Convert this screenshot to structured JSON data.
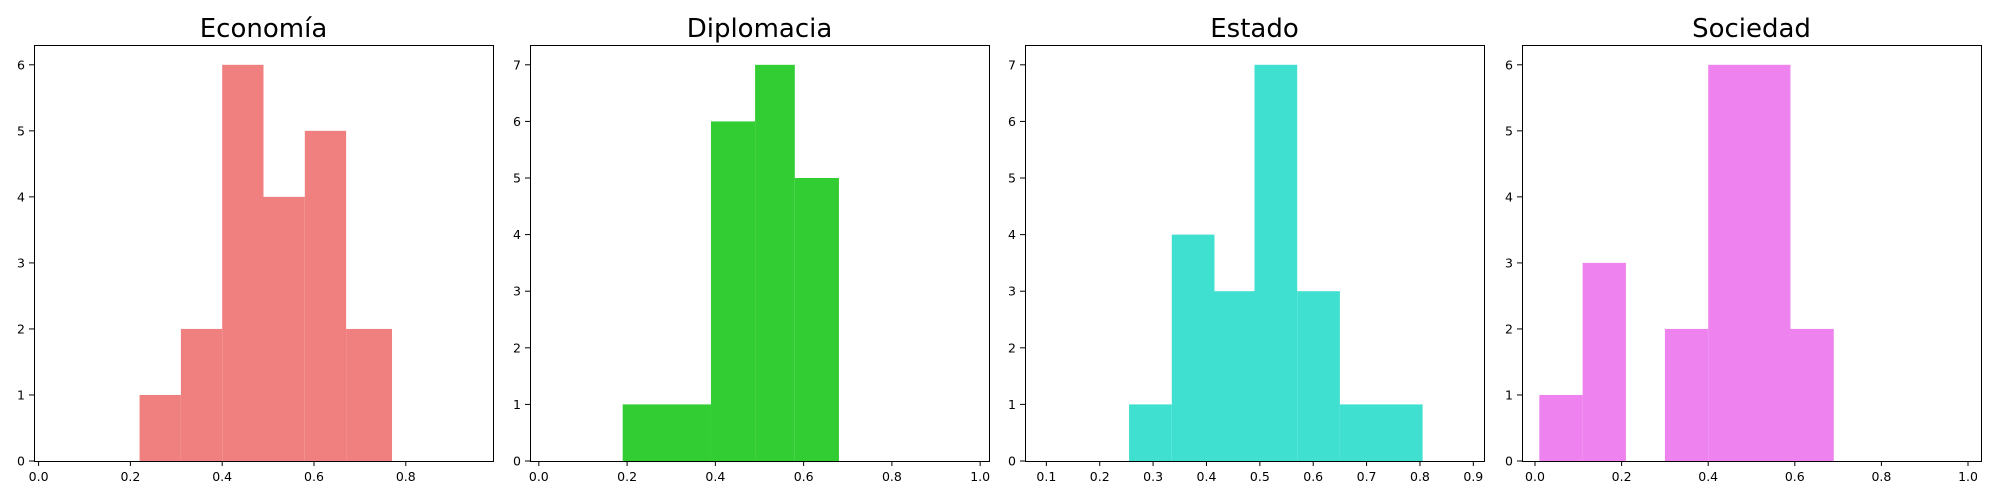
{
  "chart_data": [
    {
      "type": "bar",
      "title": "Economía",
      "color": "#f08080",
      "xlim": [
        -0.01,
        0.99
      ],
      "ylim": [
        0,
        6.3
      ],
      "xticks": [
        0.0,
        0.2,
        0.4,
        0.6,
        0.8
      ],
      "xtick_labels": [
        "0.0",
        "0.2",
        "0.4",
        "0.6",
        "0.8"
      ],
      "yticks": [
        0,
        1,
        2,
        3,
        4,
        5,
        6
      ],
      "ytick_labels": [
        "0",
        "1",
        "2",
        "3",
        "4",
        "5",
        "6"
      ],
      "bins": [
        {
          "x0": 0.22,
          "x1": 0.31,
          "count": 1
        },
        {
          "x0": 0.31,
          "x1": 0.4,
          "count": 2
        },
        {
          "x0": 0.4,
          "x1": 0.49,
          "count": 6
        },
        {
          "x0": 0.49,
          "x1": 0.58,
          "count": 4
        },
        {
          "x0": 0.58,
          "x1": 0.67,
          "count": 5
        },
        {
          "x0": 0.67,
          "x1": 0.77,
          "count": 2
        }
      ]
    },
    {
      "type": "bar",
      "title": "Diplomacia",
      "color": "#32cd32",
      "xlim": [
        -0.02,
        1.02
      ],
      "ylim": [
        0,
        7.35
      ],
      "xticks": [
        0.0,
        0.2,
        0.4,
        0.6,
        0.8,
        1.0
      ],
      "xtick_labels": [
        "0.0",
        "0.2",
        "0.4",
        "0.6",
        "0.8",
        "1.0"
      ],
      "yticks": [
        0,
        1,
        2,
        3,
        4,
        5,
        6,
        7
      ],
      "ytick_labels": [
        "0",
        "1",
        "2",
        "3",
        "4",
        "5",
        "6",
        "7"
      ],
      "bins": [
        {
          "x0": 0.19,
          "x1": 0.39,
          "count": 1
        },
        {
          "x0": 0.39,
          "x1": 0.49,
          "count": 6
        },
        {
          "x0": 0.49,
          "x1": 0.58,
          "count": 7
        },
        {
          "x0": 0.58,
          "x1": 0.68,
          "count": 5
        }
      ]
    },
    {
      "type": "bar",
      "title": "Estado",
      "color": "#40e0d0",
      "xlim": [
        0.06,
        0.92
      ],
      "ylim": [
        0,
        7.35
      ],
      "xticks": [
        0.1,
        0.2,
        0.3,
        0.4,
        0.5,
        0.6,
        0.7,
        0.8,
        0.9
      ],
      "xtick_labels": [
        "0.1",
        "0.2",
        "0.3",
        "0.4",
        "0.5",
        "0.6",
        "0.7",
        "0.8",
        "0.9"
      ],
      "yticks": [
        0,
        1,
        2,
        3,
        4,
        5,
        6,
        7
      ],
      "ytick_labels": [
        "0",
        "1",
        "2",
        "3",
        "4",
        "5",
        "6",
        "7"
      ],
      "bins": [
        {
          "x0": 0.255,
          "x1": 0.335,
          "count": 1
        },
        {
          "x0": 0.335,
          "x1": 0.415,
          "count": 4
        },
        {
          "x0": 0.415,
          "x1": 0.49,
          "count": 3
        },
        {
          "x0": 0.49,
          "x1": 0.57,
          "count": 7
        },
        {
          "x0": 0.57,
          "x1": 0.65,
          "count": 3
        },
        {
          "x0": 0.65,
          "x1": 0.805,
          "count": 1
        }
      ]
    },
    {
      "type": "bar",
      "title": "Sociedad",
      "color": "#ee82ee",
      "xlim": [
        -0.03,
        1.03
      ],
      "ylim": [
        0,
        6.3
      ],
      "xticks": [
        0.0,
        0.2,
        0.4,
        0.6,
        0.8,
        1.0
      ],
      "xtick_labels": [
        "0.0",
        "0.2",
        "0.4",
        "0.6",
        "0.8",
        "1.0"
      ],
      "yticks": [
        0,
        1,
        2,
        3,
        4,
        5,
        6
      ],
      "ytick_labels": [
        "0",
        "1",
        "2",
        "3",
        "4",
        "5",
        "6"
      ],
      "bins": [
        {
          "x0": 0.01,
          "x1": 0.11,
          "count": 1
        },
        {
          "x0": 0.11,
          "x1": 0.21,
          "count": 3
        },
        {
          "x0": 0.3,
          "x1": 0.4,
          "count": 2
        },
        {
          "x0": 0.4,
          "x1": 0.59,
          "count": 6
        },
        {
          "x0": 0.59,
          "x1": 0.69,
          "count": 2
        }
      ]
    }
  ]
}
